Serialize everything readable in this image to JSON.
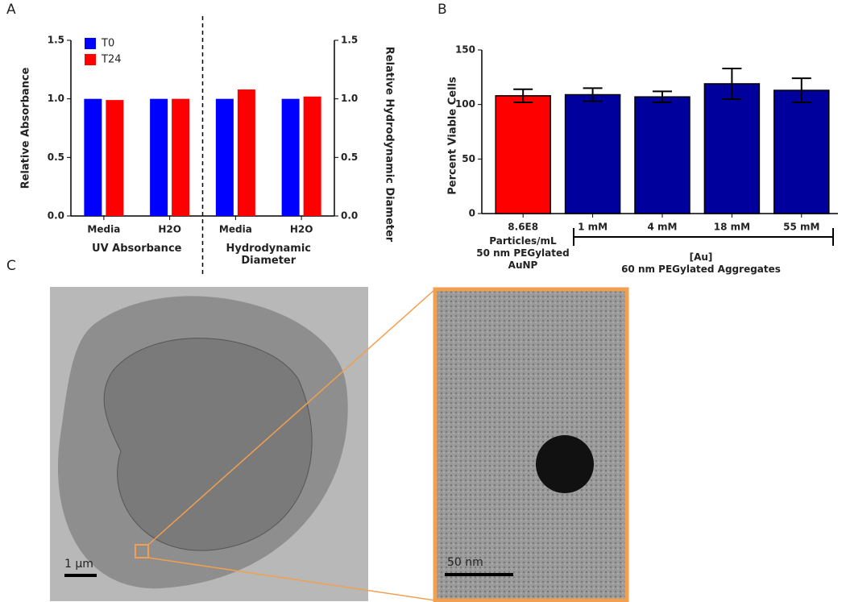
{
  "panels": {
    "labels": [
      "A",
      "B",
      "C"
    ]
  },
  "chart_data": [
    {
      "type": "grouped_bar",
      "categories": [
        "Media",
        "H2O",
        "Media",
        "H2O"
      ],
      "groups": [
        "UV  Absorbance",
        "Hydrodynamic Diameter"
      ],
      "series": [
        {
          "name": "T0",
          "color": "#0000ff",
          "values": [
            1.0,
            1.0,
            1.0,
            1.0
          ]
        },
        {
          "name": "T24",
          "color": "#ff0000",
          "values": [
            0.99,
            1.0,
            1.08,
            1.02
          ]
        }
      ],
      "ylabel": "Relative Absorbance",
      "y2label": "Relative Hydrodynamic  Diameter",
      "ylim": [
        0,
        1.5
      ],
      "yticks": [
        {
          "value": 0,
          "label": "0.0"
        },
        {
          "value": 0.5,
          "label": "0.5"
        },
        {
          "value": 1,
          "label": "1.0"
        },
        {
          "value": 1.5,
          "label": "1.5"
        }
      ],
      "y2lim": [
        0,
        1.5
      ],
      "y2ticks": [
        {
          "value": 0,
          "label": "0.0"
        },
        {
          "value": 0.5,
          "label": "0.5"
        },
        {
          "value": 1,
          "label": "1.0"
        },
        {
          "value": 1.5,
          "label": "1.5"
        }
      ],
      "legend": "upper left"
    },
    {
      "type": "bar",
      "categories": [
        "8.6E8",
        "1 mM",
        "4 mM",
        "18 mM",
        "55 mM"
      ],
      "values": [
        108,
        109,
        107,
        119,
        113
      ],
      "errors": [
        6,
        6,
        5,
        14,
        11
      ],
      "colors": [
        "#ff0000",
        "#00009c",
        "#00009c",
        "#00009c",
        "#00009c"
      ],
      "ylabel": "Percent Viable Cells",
      "ylim": [
        0,
        150
      ],
      "yticks": [
        0,
        50,
        100,
        150
      ],
      "annotations": [
        "Particles/mL",
        "50 nm PEGylated",
        "AuNP",
        "[Au]",
        "60 nm  PEGylated Aggregates"
      ]
    }
  ],
  "micrographs": {
    "scale_bars": [
      "1 μm",
      "50 nm"
    ]
  }
}
